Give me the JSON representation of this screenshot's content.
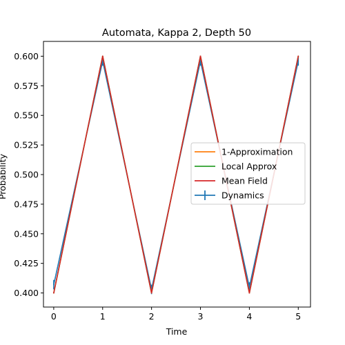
{
  "chart_data": {
    "type": "line",
    "title": "Automata, Kappa 2, Depth 50",
    "xlabel": "Time",
    "ylabel": "Probability",
    "xlim": [
      -0.21,
      5.25
    ],
    "ylim": [
      0.3881,
      0.6125
    ],
    "x": [
      0,
      1,
      2,
      3,
      4,
      5
    ],
    "xticks": [
      0,
      1,
      2,
      3,
      4,
      5
    ],
    "xtick_labels": [
      "0",
      "1",
      "2",
      "3",
      "4",
      "5"
    ],
    "yticks": [
      0.4,
      0.425,
      0.45,
      0.475,
      0.5,
      0.525,
      0.55,
      0.575,
      0.6
    ],
    "ytick_labels": [
      "0.400",
      "0.425",
      "0.450",
      "0.475",
      "0.500",
      "0.525",
      "0.550",
      "0.575",
      "0.600"
    ],
    "grid": false,
    "legend_position": "center-right",
    "series": [
      {
        "name": "1-Approximation",
        "color": "#ff7f0e",
        "style": "line",
        "values": [
          0.4,
          0.6,
          0.4,
          0.6,
          0.4,
          0.6
        ]
      },
      {
        "name": "Local Approx",
        "color": "#2ca02c",
        "style": "line",
        "values": [
          0.4,
          0.6,
          0.4,
          0.6,
          0.4,
          0.6
        ]
      },
      {
        "name": "Mean Field",
        "color": "#d62728",
        "style": "line",
        "values": [
          0.4,
          0.6,
          0.4,
          0.6,
          0.4,
          0.6
        ]
      },
      {
        "name": "Dynamics",
        "color": "#1f77b4",
        "style": "errorbar",
        "values": [
          0.407,
          0.596,
          0.403,
          0.596,
          0.405,
          0.596
        ],
        "errors": [
          0.004,
          0.004,
          0.004,
          0.004,
          0.004,
          0.004
        ]
      }
    ]
  }
}
